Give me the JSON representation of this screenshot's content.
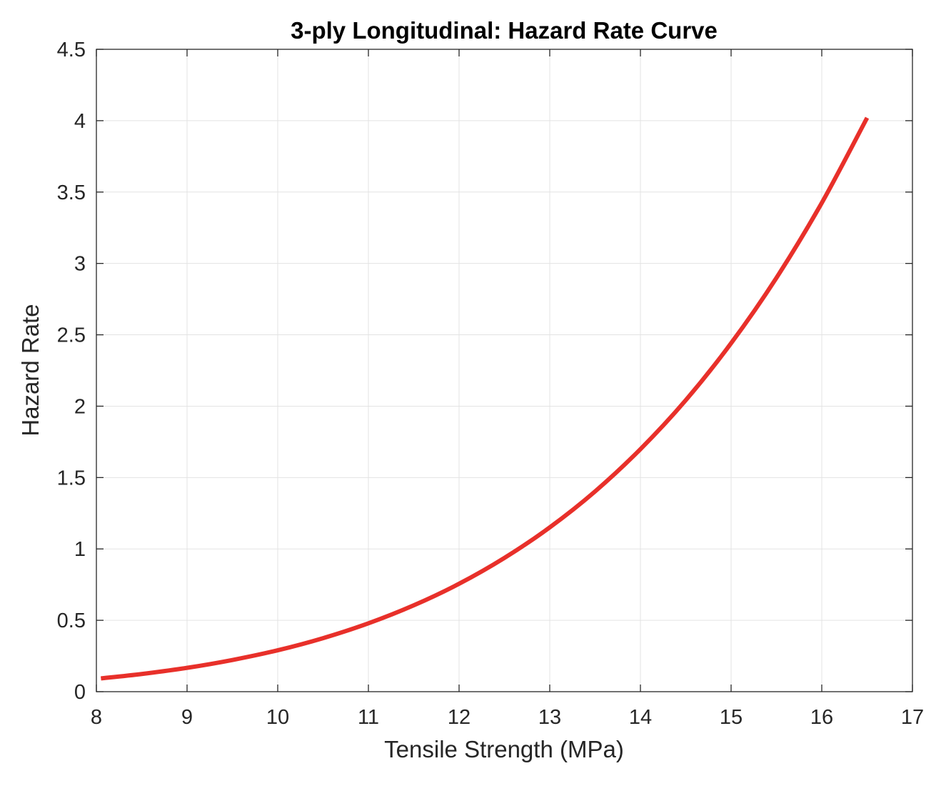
{
  "chart_data": {
    "type": "line",
    "title": "3-ply Longitudinal: Hazard Rate Curve",
    "xlabel": "Tensile Strength (MPa)",
    "ylabel": "Hazard Rate",
    "xlim": [
      8,
      17
    ],
    "ylim": [
      0,
      4.5
    ],
    "xticks": [
      "8",
      "9",
      "10",
      "11",
      "12",
      "13",
      "14",
      "15",
      "16",
      "17"
    ],
    "yticks": [
      "0",
      "0.5",
      "1",
      "1.5",
      "2",
      "2.5",
      "3",
      "3.5",
      "4",
      "4.5"
    ],
    "grid": true,
    "series": [
      {
        "color": "#e8302a",
        "x": [
          8.05,
          8.5,
          9,
          9.5,
          10,
          10.5,
          11,
          11.5,
          12,
          12.5,
          13,
          13.5,
          14,
          14.5,
          15,
          15.5,
          16,
          16.5
        ],
        "y": [
          0.093,
          0.124,
          0.167,
          0.222,
          0.29,
          0.375,
          0.479,
          0.605,
          0.756,
          0.937,
          1.151,
          1.403,
          1.699,
          2.042,
          2.441,
          2.899,
          3.424,
          4.02
        ]
      }
    ]
  }
}
